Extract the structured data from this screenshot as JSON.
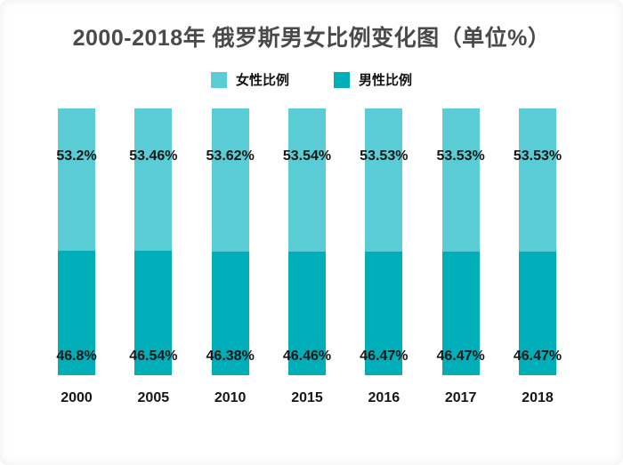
{
  "title": "2000-2018年 俄罗斯男女比例变化图（单位%）",
  "legend": [
    {
      "label": "女性比例",
      "color": "#5accd6"
    },
    {
      "label": "男性比例",
      "color": "#00aeba"
    }
  ],
  "colors": {
    "background": "#ffffff",
    "title_text": "#4a4a4a",
    "value_text": "#161616",
    "female_bar": "#5accd6",
    "male_bar": "#00aeba"
  },
  "chart_data": {
    "type": "bar",
    "stacked": true,
    "title": "2000-2018年 俄罗斯男女比例变化图（单位%）",
    "xlabel": "",
    "ylabel": "",
    "ylim": [
      0,
      100
    ],
    "grid": false,
    "legend_position": "top",
    "categories": [
      "2000",
      "2005",
      "2010",
      "2015",
      "2016",
      "2017",
      "2018"
    ],
    "series": [
      {
        "name": "女性比例",
        "color": "#5accd6",
        "values": [
          53.2,
          53.46,
          53.62,
          53.54,
          53.53,
          53.53,
          53.53
        ],
        "labels": [
          "53.2%",
          "53.46%",
          "53.62%",
          "53.54%",
          "53.53%",
          "53.53%",
          "53.53%"
        ]
      },
      {
        "name": "男性比例",
        "color": "#00aeba",
        "values": [
          46.8,
          46.54,
          46.38,
          46.46,
          46.47,
          46.47,
          46.47
        ],
        "labels": [
          "46.8%",
          "46.54%",
          "46.38%",
          "46.46%",
          "46.47%",
          "46.47%",
          "46.47%"
        ]
      }
    ]
  }
}
